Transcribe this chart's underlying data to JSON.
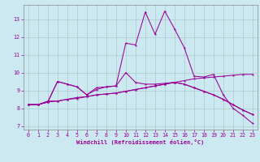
{
  "xlabel": "Windchill (Refroidissement éolien,°C)",
  "bg_color": "#cce8f0",
  "line_color": "#990099",
  "grid_color": "#aacccc",
  "xlim": [
    -0.5,
    23.5
  ],
  "ylim": [
    6.8,
    13.8
  ],
  "yticks": [
    7,
    8,
    9,
    10,
    11,
    12,
    13
  ],
  "xticks": [
    0,
    1,
    2,
    3,
    4,
    5,
    6,
    7,
    8,
    9,
    10,
    11,
    12,
    13,
    14,
    15,
    16,
    17,
    18,
    19,
    20,
    21,
    22,
    23
  ],
  "lines": [
    {
      "x": [
        0,
        1,
        2,
        3,
        4,
        5,
        6,
        7,
        8,
        9,
        10,
        11,
        12,
        13,
        14,
        15,
        16,
        17,
        18,
        19,
        20,
        21,
        22,
        23
      ],
      "y": [
        8.2,
        8.2,
        8.4,
        8.4,
        8.5,
        8.6,
        8.65,
        8.75,
        8.8,
        8.85,
        8.95,
        9.05,
        9.15,
        9.25,
        9.35,
        9.45,
        9.55,
        9.65,
        9.7,
        9.75,
        9.8,
        9.85,
        9.9,
        9.9
      ]
    },
    {
      "x": [
        0,
        1,
        2,
        3,
        4,
        5,
        6,
        7,
        8,
        9,
        10,
        11,
        12,
        13,
        14,
        15,
        16,
        17,
        18,
        19,
        20,
        21,
        22,
        23
      ],
      "y": [
        8.2,
        8.2,
        8.35,
        9.5,
        9.35,
        9.2,
        8.75,
        9.15,
        9.2,
        9.25,
        11.65,
        11.55,
        13.4,
        12.15,
        13.45,
        12.45,
        11.4,
        9.8,
        9.75,
        9.9,
        8.75,
        8.0,
        7.6,
        7.15
      ]
    },
    {
      "x": [
        0,
        1,
        2,
        3,
        4,
        5,
        6,
        7,
        8,
        9,
        10,
        11,
        12,
        13,
        14,
        15,
        16,
        17,
        18,
        19,
        20,
        21,
        22,
        23
      ],
      "y": [
        8.2,
        8.2,
        8.35,
        8.4,
        8.5,
        8.55,
        8.65,
        8.75,
        8.8,
        8.85,
        8.95,
        9.05,
        9.15,
        9.25,
        9.35,
        9.45,
        9.35,
        9.15,
        8.95,
        8.75,
        8.5,
        8.2,
        7.9,
        7.65
      ]
    },
    {
      "x": [
        0,
        1,
        2,
        3,
        4,
        5,
        6,
        7,
        8,
        9,
        10,
        11,
        12,
        13,
        14,
        15,
        16,
        17,
        18,
        19,
        20,
        21,
        22,
        23
      ],
      "y": [
        8.2,
        8.2,
        8.35,
        9.5,
        9.35,
        9.2,
        8.75,
        9.05,
        9.2,
        9.25,
        10.0,
        9.45,
        9.35,
        9.35,
        9.4,
        9.45,
        9.35,
        9.15,
        8.95,
        8.75,
        8.5,
        8.2,
        7.9,
        7.65
      ]
    }
  ]
}
